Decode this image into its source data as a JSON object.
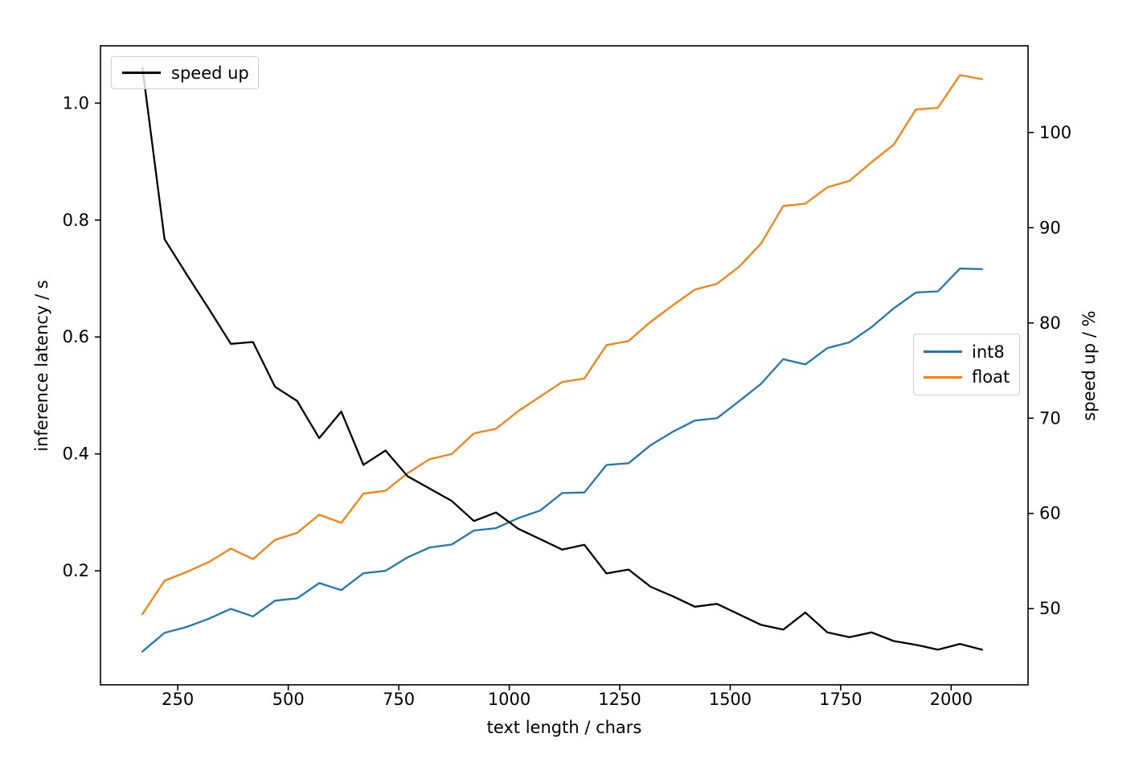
{
  "chart_data": {
    "type": "line",
    "title": "",
    "x_label": "text length / chars",
    "y_left_label": "inference latency / s",
    "y_right_label": "speed up / %",
    "x": [
      170,
      220,
      270,
      320,
      370,
      420,
      470,
      520,
      570,
      620,
      670,
      720,
      770,
      820,
      870,
      920,
      970,
      1020,
      1070,
      1120,
      1170,
      1220,
      1270,
      1320,
      1370,
      1420,
      1470,
      1520,
      1570,
      1620,
      1670,
      1720,
      1770,
      1820,
      1870,
      1920,
      1970,
      2020,
      2070
    ],
    "series": [
      {
        "name": "int8",
        "axis": "left",
        "color": "#1f77b4",
        "values": [
          0.062,
          0.094,
          0.104,
          0.118,
          0.135,
          0.122,
          0.149,
          0.153,
          0.179,
          0.167,
          0.196,
          0.2,
          0.223,
          0.24,
          0.245,
          0.269,
          0.273,
          0.29,
          0.303,
          0.333,
          0.334,
          0.381,
          0.384,
          0.415,
          0.438,
          0.457,
          0.461,
          0.49,
          0.52,
          0.562,
          0.553,
          0.581,
          0.591,
          0.617,
          0.649,
          0.676,
          0.678,
          0.717,
          0.716
        ]
      },
      {
        "name": "float",
        "axis": "left",
        "color": "#ff7f0e",
        "values": [
          0.126,
          0.183,
          0.198,
          0.215,
          0.238,
          0.22,
          0.253,
          0.265,
          0.296,
          0.282,
          0.332,
          0.337,
          0.367,
          0.391,
          0.4,
          0.435,
          0.443,
          0.473,
          0.498,
          0.523,
          0.529,
          0.586,
          0.593,
          0.626,
          0.654,
          0.681,
          0.691,
          0.72,
          0.76,
          0.824,
          0.828,
          0.856,
          0.867,
          0.899,
          0.929,
          0.989,
          0.992,
          1.048,
          1.041
        ]
      },
      {
        "name": "speed up",
        "axis": "right",
        "color": "#000000",
        "values": [
          106.8,
          88.8,
          85.1,
          81.5,
          77.8,
          78.0,
          73.3,
          71.8,
          67.9,
          70.7,
          65.1,
          66.6,
          63.9,
          62.6,
          61.3,
          59.2,
          60.1,
          58.4,
          57.3,
          56.2,
          56.7,
          53.7,
          54.1,
          52.3,
          51.3,
          50.2,
          50.5,
          49.4,
          48.3,
          47.8,
          49.6,
          47.5,
          47.0,
          47.5,
          46.6,
          46.2,
          45.7,
          46.3,
          45.7
        ]
      }
    ],
    "x_ticks": [
      "250",
      "500",
      "750",
      "1000",
      "1250",
      "1500",
      "1750",
      "2000"
    ],
    "y_left_ticks": [
      "0.2",
      "0.4",
      "0.6",
      "0.8",
      "1.0"
    ],
    "y_right_ticks": [
      "50",
      "60",
      "70",
      "80",
      "90",
      "100"
    ],
    "xlim": [
      75,
      2174
    ],
    "y_left_lim": [
      0.005,
      1.098
    ],
    "y_right_lim": [
      42.0,
      109.1
    ],
    "grid": false,
    "legend_positions": [
      "upper left",
      "center right"
    ]
  }
}
